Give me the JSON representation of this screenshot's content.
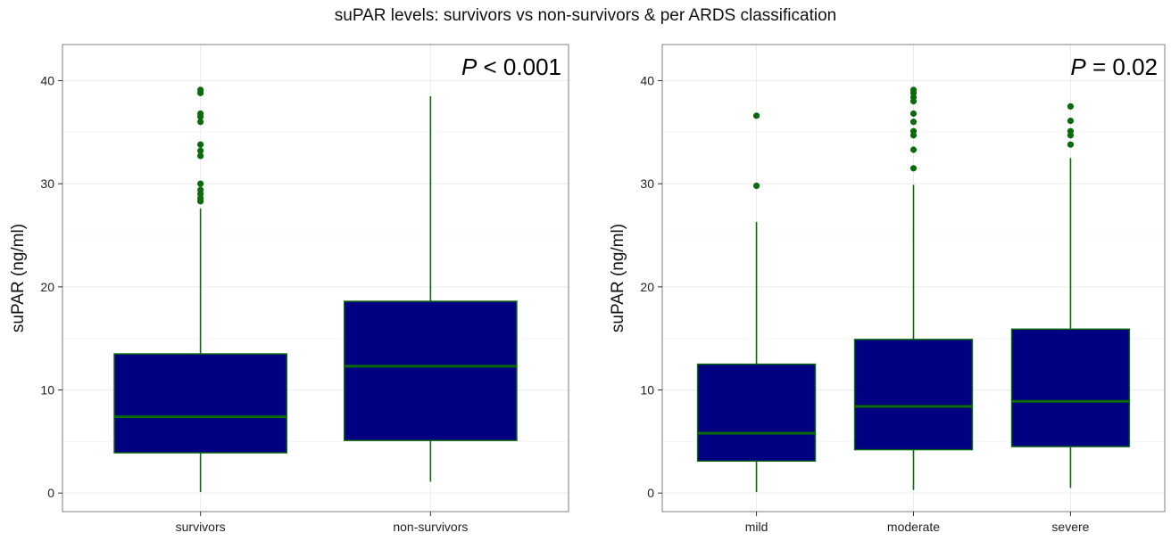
{
  "title": "suPAR levels: survivors vs non-survivors & per ARDS classification",
  "colors": {
    "box_fill": "#000080",
    "box_line": "#0a6b0a",
    "outlier": "#0a6b0a",
    "grid": "#ebebeb",
    "panel_border": "#7f7f7f"
  },
  "chart_data": [
    {
      "type": "box",
      "ylabel": "suPAR (ng/ml)",
      "xlabel": "",
      "ylim": [
        -1.8,
        43.5
      ],
      "yticks": [
        0,
        10,
        20,
        30,
        40
      ],
      "grid": true,
      "annotation": {
        "prefix": "P",
        "text": " < 0.001",
        "position": "top-right"
      },
      "categories": [
        "survivors",
        "non-survivors"
      ],
      "boxes": [
        {
          "name": "survivors",
          "whisker_low": 0.1,
          "q1": 3.9,
          "median": 7.4,
          "q3": 13.5,
          "whisker_high": 27.6,
          "outliers": [
            28.3,
            28.6,
            29.0,
            29.4,
            30.0,
            32.7,
            33.2,
            33.8,
            36.0,
            36.5,
            36.8,
            38.8,
            39.1
          ]
        },
        {
          "name": "non-survivors",
          "whisker_low": 1.1,
          "q1": 5.1,
          "median": 12.3,
          "q3": 18.6,
          "whisker_high": 38.5,
          "outliers": []
        }
      ]
    },
    {
      "type": "box",
      "ylabel": "suPAR (ng/ml)",
      "xlabel": "",
      "ylim": [
        -1.8,
        43.5
      ],
      "yticks": [
        0,
        10,
        20,
        30,
        40
      ],
      "grid": true,
      "annotation": {
        "prefix": "P",
        "text": " = 0.02",
        "position": "top-right"
      },
      "categories": [
        "mild",
        "moderate",
        "severe"
      ],
      "boxes": [
        {
          "name": "mild",
          "whisker_low": 0.1,
          "q1": 3.1,
          "median": 5.8,
          "q3": 12.5,
          "whisker_high": 26.3,
          "outliers": [
            29.8,
            36.6
          ]
        },
        {
          "name": "moderate",
          "whisker_low": 0.3,
          "q1": 4.2,
          "median": 8.4,
          "q3": 14.9,
          "whisker_high": 29.9,
          "outliers": [
            31.5,
            33.3,
            34.7,
            35.1,
            36.0,
            36.8,
            38.0,
            38.4,
            38.8,
            39.1
          ]
        },
        {
          "name": "severe",
          "whisker_low": 0.5,
          "q1": 4.5,
          "median": 8.9,
          "q3": 15.9,
          "whisker_high": 32.5,
          "outliers": [
            33.8,
            34.7,
            35.1,
            36.1,
            37.5
          ]
        }
      ]
    }
  ]
}
